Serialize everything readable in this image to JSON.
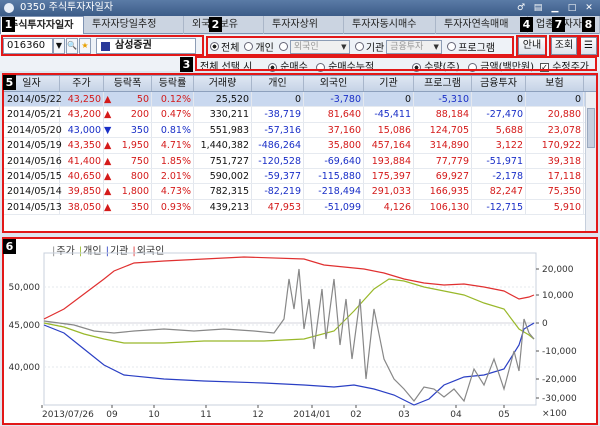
{
  "window": {
    "title": "0350 주식투자자일자"
  },
  "tabs": [
    "주식투자자일자",
    "투자자당일추정",
    "외국인보유",
    "투자자상위",
    "투자자동시매수",
    "투자자연속매매",
    "업종투자자"
  ],
  "toolbar": {
    "code": "016360",
    "stock_name": "삼성증권",
    "radio_all": "전체",
    "radio_individual": "개인",
    "combo_foreign": "외국인",
    "radio_inst": "기관",
    "combo_inst": "금융투자",
    "radio_program": "프로그램",
    "guide_button": "안내",
    "query_button": "조회"
  },
  "options": {
    "all_select": "전체 선택 시",
    "net_buy": "순매수",
    "net_buy_acc": "순매수누적",
    "qty": "수량(주)",
    "amount": "금액(백만원)",
    "adjusted": "수정주가"
  },
  "table": {
    "columns": [
      "일자",
      "주가",
      "등락폭",
      "등락률",
      "거래량",
      "개인",
      "외국인",
      "기관",
      "프로그램",
      "금융투자",
      "보험"
    ],
    "rows": [
      [
        "2014/05/22",
        "43,250",
        "▲",
        "50",
        "0.12%",
        "25,520",
        "0",
        "-3,780",
        "0",
        "-5,310",
        "0",
        "0"
      ],
      [
        "2014/05/21",
        "43,200",
        "▲",
        "200",
        "0.47%",
        "330,211",
        "-38,719",
        "81,640",
        "-45,411",
        "88,184",
        "-27,470",
        "20,880"
      ],
      [
        "2014/05/20",
        "43,000",
        "▼",
        "350",
        "0.81%",
        "551,983",
        "-57,316",
        "37,160",
        "15,086",
        "124,705",
        "5,688",
        "23,078"
      ],
      [
        "2014/05/19",
        "43,350",
        "▲",
        "1,950",
        "4.71%",
        "1,440,382",
        "-486,264",
        "35,800",
        "457,164",
        "314,890",
        "3,122",
        "170,922"
      ],
      [
        "2014/05/16",
        "41,400",
        "▲",
        "750",
        "1.85%",
        "751,727",
        "-120,528",
        "-69,640",
        "193,884",
        "77,779",
        "-51,971",
        "39,318"
      ],
      [
        "2014/05/15",
        "40,650",
        "▲",
        "800",
        "2.01%",
        "590,002",
        "-59,377",
        "-115,880",
        "175,397",
        "69,927",
        "-2,178",
        "17,118"
      ],
      [
        "2014/05/14",
        "39,850",
        "▲",
        "1,800",
        "4.73%",
        "782,315",
        "-82,219",
        "-218,494",
        "291,033",
        "166,935",
        "82,247",
        "75,350"
      ],
      [
        "2014/05/13",
        "38,050",
        "▲",
        "350",
        "0.93%",
        "439,213",
        "47,953",
        "-51,099",
        "4,126",
        "106,130",
        "-12,715",
        "5,910"
      ]
    ]
  },
  "chart": {
    "legend": [
      "주가",
      "개인",
      "기관",
      "외국인"
    ],
    "legend_colors": [
      "#888888",
      "#99b82a",
      "#2a3fc4",
      "#e03030"
    ],
    "left_axis": [
      "50,000",
      "45,000",
      "40,000"
    ],
    "right_axis": [
      "20,000",
      "10,000",
      "0",
      "-10,000",
      "-20,000",
      "-30,000",
      "×100"
    ],
    "x_labels": [
      "2013/07/26",
      "09",
      "10",
      "11",
      "12",
      "2014/01",
      "02",
      "03",
      "04",
      "05"
    ]
  },
  "badges": [
    "1",
    "2",
    "3",
    "4",
    "5",
    "6",
    "7",
    "8"
  ]
}
